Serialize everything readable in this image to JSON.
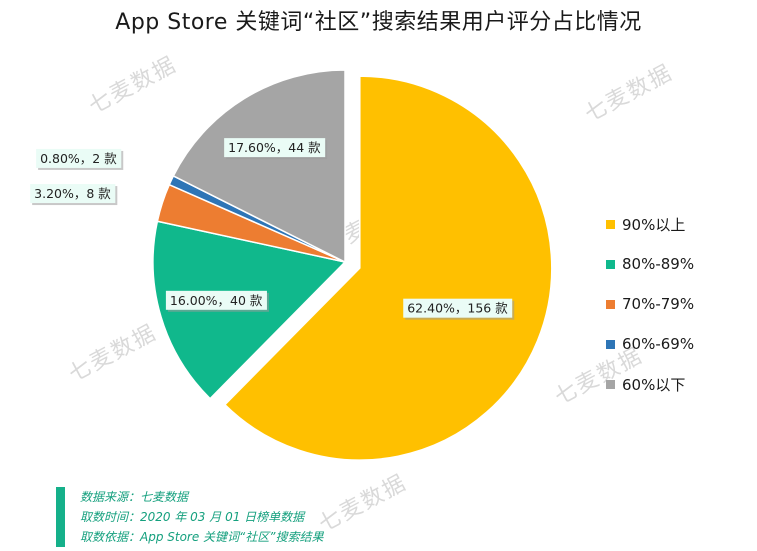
{
  "title": "App Store 关键词“社区”搜索结果用户评分占比情况",
  "watermark_text": "七麦数据",
  "colors": {
    "series": [
      "#ffc000",
      "#10b88c",
      "#ed7d31",
      "#2e75b6",
      "#a5a5a5"
    ],
    "footer_accent": "#15b08a"
  },
  "chart_data": {
    "type": "pie",
    "title": "App Store 关键词“社区”搜索结果用户评分占比情况",
    "categories": [
      "90%以上",
      "80%-89%",
      "70%-79%",
      "60%-69%",
      "60%以下"
    ],
    "values": [
      156,
      40,
      8,
      2,
      44
    ],
    "percents": [
      62.4,
      16.0,
      3.2,
      0.8,
      17.6
    ],
    "data_labels": [
      "62.40%，156 款",
      "16.00%，40 款",
      "3.20%，8 款",
      "0.80%，2 款",
      "17.60%，44 款"
    ],
    "exploded": [
      true,
      false,
      false,
      false,
      false
    ],
    "legend_position": "right",
    "start": "top, clockwise"
  },
  "legend": [
    {
      "label": "90%以上"
    },
    {
      "label": "80%-89%"
    },
    {
      "label": "70%-79%"
    },
    {
      "label": "60%-69%"
    },
    {
      "label": "60%以下"
    }
  ],
  "footer": {
    "source": "数据来源：七麦数据",
    "time": "取数时间：2020 年 03 月 01 日榜单数据",
    "basis": "取数依据：App Store 关键词“社区”搜索结果"
  }
}
